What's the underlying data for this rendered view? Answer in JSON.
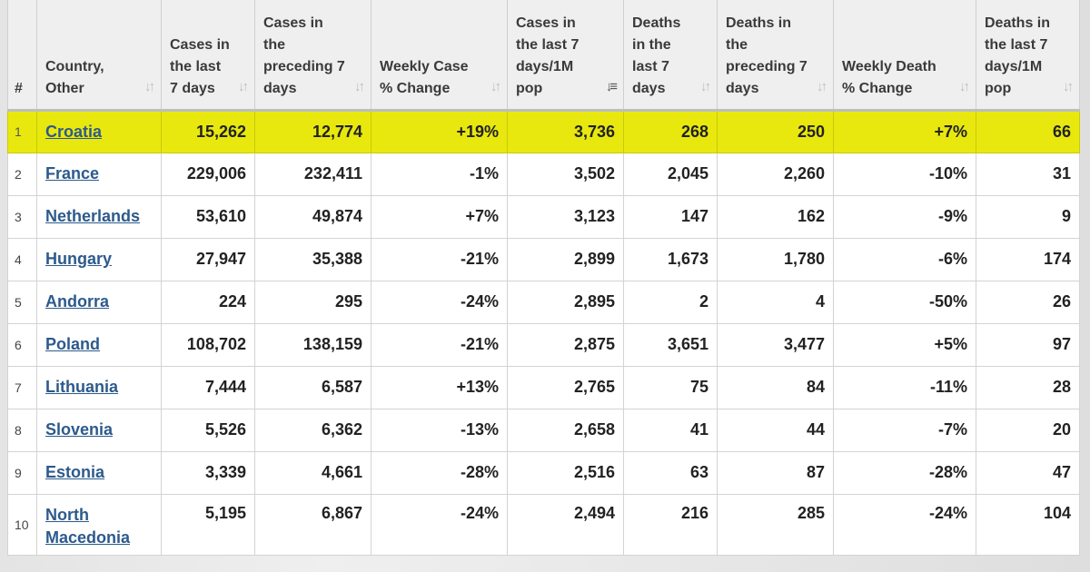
{
  "columns": [
    {
      "label": "#"
    },
    {
      "label": "Country, Other"
    },
    {
      "label": "Cases in the last 7 days"
    },
    {
      "label": "Cases in the preceding 7 days"
    },
    {
      "label": "Weekly Case % Change"
    },
    {
      "label": "Cases in the last 7 days/1M pop"
    },
    {
      "label": "Deaths in the last 7 days"
    },
    {
      "label": "Deaths in the preceding 7 days"
    },
    {
      "label": "Weekly Death % Change"
    },
    {
      "label": "Deaths in the last 7 days/1M pop"
    }
  ],
  "sort_icon": "sort-updown-icon",
  "active_sort_icon": "sort-descending-icon",
  "highlight_color": "#e8e80f",
  "link_color": "#2c5a8c",
  "rows": [
    {
      "rank": "1",
      "country": "Croatia",
      "cases7": "15,262",
      "cases_prev": "12,774",
      "weekly_case_change": "+19%",
      "cases_per_1m": "3,736",
      "deaths7": "268",
      "deaths_prev": "250",
      "weekly_death_change": "+7%",
      "deaths_per_1m": "66"
    },
    {
      "rank": "2",
      "country": "France",
      "cases7": "229,006",
      "cases_prev": "232,411",
      "weekly_case_change": "-1%",
      "cases_per_1m": "3,502",
      "deaths7": "2,045",
      "deaths_prev": "2,260",
      "weekly_death_change": "-10%",
      "deaths_per_1m": "31"
    },
    {
      "rank": "3",
      "country": "Netherlands",
      "cases7": "53,610",
      "cases_prev": "49,874",
      "weekly_case_change": "+7%",
      "cases_per_1m": "3,123",
      "deaths7": "147",
      "deaths_prev": "162",
      "weekly_death_change": "-9%",
      "deaths_per_1m": "9"
    },
    {
      "rank": "4",
      "country": "Hungary",
      "cases7": "27,947",
      "cases_prev": "35,388",
      "weekly_case_change": "-21%",
      "cases_per_1m": "2,899",
      "deaths7": "1,673",
      "deaths_prev": "1,780",
      "weekly_death_change": "-6%",
      "deaths_per_1m": "174"
    },
    {
      "rank": "5",
      "country": "Andorra",
      "cases7": "224",
      "cases_prev": "295",
      "weekly_case_change": "-24%",
      "cases_per_1m": "2,895",
      "deaths7": "2",
      "deaths_prev": "4",
      "weekly_death_change": "-50%",
      "deaths_per_1m": "26"
    },
    {
      "rank": "6",
      "country": "Poland",
      "cases7": "108,702",
      "cases_prev": "138,159",
      "weekly_case_change": "-21%",
      "cases_per_1m": "2,875",
      "deaths7": "3,651",
      "deaths_prev": "3,477",
      "weekly_death_change": "+5%",
      "deaths_per_1m": "97"
    },
    {
      "rank": "7",
      "country": "Lithuania",
      "cases7": "7,444",
      "cases_prev": "6,587",
      "weekly_case_change": "+13%",
      "cases_per_1m": "2,765",
      "deaths7": "75",
      "deaths_prev": "84",
      "weekly_death_change": "-11%",
      "deaths_per_1m": "28"
    },
    {
      "rank": "8",
      "country": "Slovenia",
      "cases7": "5,526",
      "cases_prev": "6,362",
      "weekly_case_change": "-13%",
      "cases_per_1m": "2,658",
      "deaths7": "41",
      "deaths_prev": "44",
      "weekly_death_change": "-7%",
      "deaths_per_1m": "20"
    },
    {
      "rank": "9",
      "country": "Estonia",
      "cases7": "3,339",
      "cases_prev": "4,661",
      "weekly_case_change": "-28%",
      "cases_per_1m": "2,516",
      "deaths7": "63",
      "deaths_prev": "87",
      "weekly_death_change": "-28%",
      "deaths_per_1m": "47"
    },
    {
      "rank": "10",
      "country": "North Macedonia",
      "cases7": "5,195",
      "cases_prev": "6,867",
      "weekly_case_change": "-24%",
      "cases_per_1m": "2,494",
      "deaths7": "216",
      "deaths_prev": "285",
      "weekly_death_change": "-24%",
      "deaths_per_1m": "104"
    }
  ]
}
